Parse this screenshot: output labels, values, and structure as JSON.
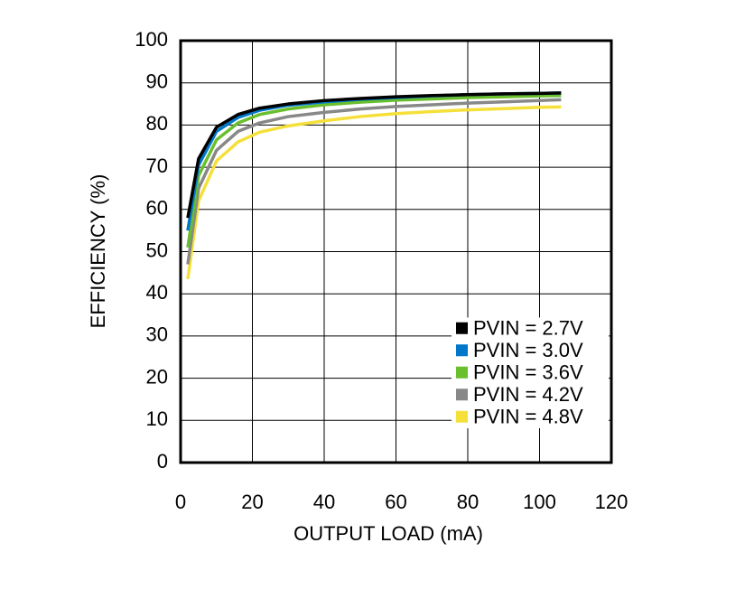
{
  "chart_data": {
    "type": "line",
    "x_label": "OUTPUT LOAD (mA)",
    "y_label": "EFFICIENCY (%)",
    "x": [
      2,
      5,
      10,
      16,
      22,
      30,
      40,
      50,
      60,
      70,
      80,
      90,
      100,
      106
    ],
    "series": [
      {
        "name": "PVIN = 2.7V",
        "color": "#000000",
        "values": [
          58,
          72,
          79.5,
          82.5,
          84,
          85,
          85.8,
          86.3,
          86.7,
          87,
          87.2,
          87.4,
          87.5,
          87.6
        ]
      },
      {
        "name": "PVIN = 3.0V",
        "color": "#0077c8",
        "values": [
          55,
          70.5,
          78.5,
          81.8,
          83.5,
          84.7,
          85.5,
          86.1,
          86.5,
          86.9,
          87.2,
          87.4,
          87.5,
          87.6
        ]
      },
      {
        "name": "PVIN = 3.6V",
        "color": "#6abf2e",
        "values": [
          51,
          68,
          76.5,
          80.5,
          82.5,
          83.8,
          84.8,
          85.4,
          85.9,
          86.2,
          86.5,
          86.7,
          86.9,
          87
        ]
      },
      {
        "name": "PVIN = 4.2V",
        "color": "#888888",
        "values": [
          47,
          65,
          74,
          78.5,
          80.5,
          82,
          83,
          83.8,
          84.4,
          84.8,
          85.2,
          85.5,
          85.8,
          86
        ]
      },
      {
        "name": "PVIN = 4.8V",
        "color": "#f5e03a",
        "values": [
          43.5,
          62,
          71.5,
          76,
          78.3,
          79.8,
          81,
          82,
          82.7,
          83.2,
          83.6,
          83.9,
          84.2,
          84.3
        ]
      }
    ],
    "xlim": [
      0,
      120
    ],
    "xticks": [
      0,
      20,
      40,
      60,
      80,
      100,
      120
    ],
    "ylim": [
      0,
      100
    ],
    "yticks": [
      0,
      10,
      20,
      30,
      40,
      50,
      60,
      70,
      80,
      90,
      100
    ],
    "grid": true,
    "legend": "lower right"
  }
}
